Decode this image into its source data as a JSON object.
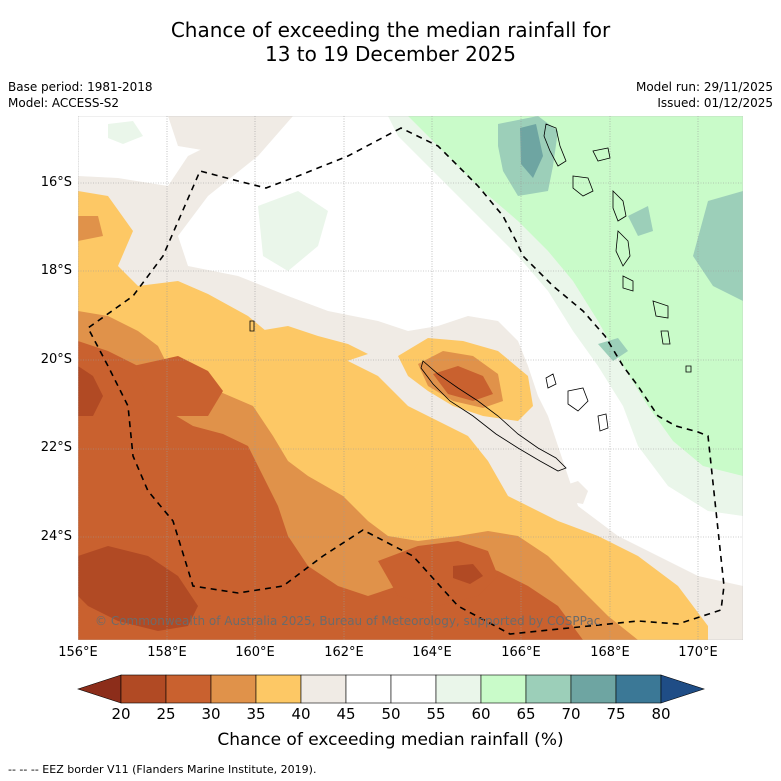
{
  "title": {
    "line1": "Chance of exceeding the median rainfall for",
    "line2": "13 to 19 December 2025"
  },
  "meta": {
    "base_period": "Base period: 1981-2018",
    "model": "Model: ACCESS-S2",
    "model_run": "Model run: 29/11/2025",
    "issued": "Issued: 01/12/2025"
  },
  "map": {
    "lat_labels": [
      "16°S",
      "18°S",
      "20°S",
      "22°S",
      "24°S"
    ],
    "lon_labels": [
      "156°E",
      "158°E",
      "160°E",
      "162°E",
      "164°E",
      "166°E",
      "168°E",
      "170°E"
    ],
    "copyright": "© Commonwealth of Australia 2025, Bureau of Meteorology, supported by COSPPac"
  },
  "colorbar": {
    "ticks": [
      "20",
      "25",
      "30",
      "35",
      "40",
      "45",
      "50",
      "55",
      "60",
      "65",
      "70",
      "75",
      "80"
    ],
    "colors": {
      "lt20": "#8c2d1a",
      "c20_25": "#b14a24",
      "c25_30": "#c9612f",
      "c30_35": "#e0924a",
      "c35_40": "#fdc865",
      "c40_45": "#f0ebe5",
      "c45_50": "#ffffff",
      "c50_55": "#ffffff",
      "c55_60": "#eaf6ea",
      "c60_65": "#c9fbc9",
      "c65_70": "#9ccfb9",
      "c70_75": "#6ea5a2",
      "c75_80": "#3b7896",
      "gt80": "#1f4d86"
    },
    "label": "Chance of exceeding median rainfall (%)"
  },
  "footnote": "--  --  -- EEZ border V11 (Flanders Marine Institute, 2019)."
}
